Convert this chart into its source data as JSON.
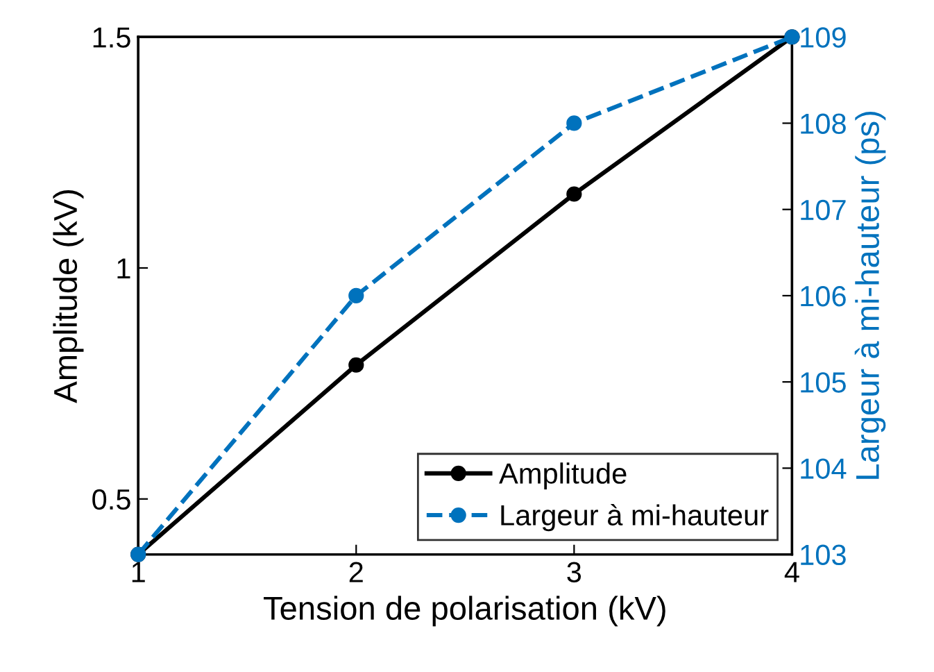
{
  "chart_data": {
    "type": "line",
    "xlabel": "Tension de polarisation (kV)",
    "ylabel": "Amplitude (kV)",
    "y2label": "Largeur à mi-hauteur (ps)",
    "x": [
      1,
      2,
      3,
      4
    ],
    "xlim": [
      1,
      4
    ],
    "xticks": [
      1,
      2,
      3,
      4
    ],
    "ylim": [
      0.38,
      1.5
    ],
    "yticks": [
      0.5,
      1,
      1.5
    ],
    "y2lim": [
      103,
      109
    ],
    "y2ticks": [
      103,
      104,
      105,
      106,
      107,
      108,
      109
    ],
    "series": [
      {
        "name": "Amplitude",
        "color": "#000000",
        "values": [
          0.38,
          0.79,
          1.16,
          1.5
        ],
        "line_style": "solid"
      },
      {
        "name": "Largeur à mi-hauteur",
        "color": "#0072bd",
        "values": [
          103,
          106,
          108,
          109
        ],
        "axis": "y2",
        "line_style": "dashed"
      }
    ],
    "marker": "circle",
    "legend": "bottom right",
    "grid": false
  }
}
